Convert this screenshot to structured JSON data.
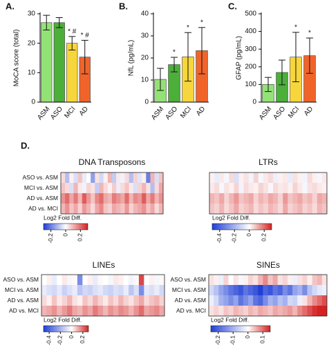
{
  "chart_data": [
    {
      "type": "bar",
      "panel_label": "A.",
      "ylabel": "MoCA score (total)",
      "categories": [
        "ASM",
        "ASO",
        "MCI",
        "AD"
      ],
      "values": [
        27,
        27,
        20,
        15.3
      ],
      "errors": [
        2.5,
        1.7,
        2.3,
        5.7
      ],
      "annotations": [
        null,
        null,
        "* #",
        "* #"
      ],
      "colors": [
        "#93e276",
        "#4caf3a",
        "#f7d63c",
        "#f0642a"
      ],
      "ylim": [
        0,
        30
      ],
      "yticks": [
        0,
        10,
        20,
        30
      ]
    },
    {
      "type": "bar",
      "panel_label": "B.",
      "ylabel": "NfL (pg/mL)",
      "categories": [
        "ASM",
        "ASO",
        "MCI",
        "AD"
      ],
      "values": [
        10.3,
        17,
        20.5,
        23.3
      ],
      "errors": [
        5,
        3.3,
        11,
        10.5
      ],
      "annotations": [
        null,
        "*",
        "*",
        "*"
      ],
      "colors": [
        "#93e276",
        "#4caf3a",
        "#f7d63c",
        "#f0642a"
      ],
      "ylim": [
        0,
        40
      ],
      "yticks": [
        0,
        10,
        20,
        30,
        40
      ]
    },
    {
      "type": "bar",
      "panel_label": "C.",
      "ylabel": "GFAP (pg/mL)",
      "categories": [
        "ASM",
        "ASO",
        "MCI",
        "AD"
      ],
      "values": [
        100,
        168,
        255,
        263
      ],
      "errors": [
        40,
        70,
        140,
        100
      ],
      "annotations": [
        null,
        null,
        "*",
        "*"
      ],
      "colors": [
        "#93e276",
        "#4caf3a",
        "#f7d63c",
        "#f0642a"
      ],
      "ylim": [
        0,
        500
      ],
      "yticks": [
        0,
        100,
        200,
        300,
        400,
        500
      ]
    },
    {
      "type": "heatmap",
      "panel_label": "D.",
      "title": "DNA Transposons",
      "colorbar_label": "Log2 Fold Diff.",
      "zlim": [
        -0.3,
        0.3
      ],
      "zticks": [
        -0.2,
        0,
        0.2
      ],
      "series": [
        {
          "name": "ASO vs. ASM",
          "values": [
            0.05,
            -0.1,
            0.02,
            -0.05,
            0.08,
            -0.03,
            0,
            -0.15,
            0.04,
            -0.06,
            0.02,
            0.1,
            -0.08,
            0.03,
            -0.02,
            0.05,
            -0.1,
            0.06,
            -0.04,
            0.02,
            -0.2,
            0.1,
            -0.05,
            0.08
          ]
        },
        {
          "name": "MCI vs. ASM",
          "values": [
            0.08,
            0.05,
            -0.05,
            0.1,
            0.03,
            -0.02,
            0.06,
            0.04,
            -0.08,
            0.1,
            0.05,
            0.02,
            0.07,
            -0.03,
            0.05,
            0.08,
            0.03,
            -0.05,
            0.06,
            0.1,
            0.04,
            -0.1,
            0.05,
            0.12
          ]
        },
        {
          "name": "AD vs. ASM",
          "values": [
            0.15,
            0.2,
            0.12,
            0.18,
            0.1,
            0.22,
            0.14,
            0.08,
            0.16,
            0.2,
            0.12,
            0.1,
            0.18,
            0.15,
            0.12,
            0.2,
            0.1,
            0.16,
            0.14,
            0.22,
            0.12,
            0.18,
            0.1,
            0.15
          ]
        },
        {
          "name": "AD vs. MCI",
          "values": [
            0.1,
            0.15,
            0.08,
            0.12,
            0.06,
            0.14,
            0.1,
            0.05,
            0.12,
            0.16,
            0.08,
            0.06,
            0.12,
            0.1,
            0.08,
            0.14,
            0.06,
            0.1,
            0.12,
            0.15,
            0.08,
            0.12,
            0.05,
            0.1
          ]
        }
      ]
    },
    {
      "type": "heatmap",
      "title": "LTRs",
      "colorbar_label": "Log2 Fold Diff.",
      "zlim": [
        -0.5,
        0.3
      ],
      "zticks": [
        -0.4,
        -0.2,
        0,
        0.2
      ],
      "series": [
        {
          "values": [
            0.02,
            -0.05,
            0.03,
            -0.02,
            0.05,
            -0.08,
            0.02,
            0.04,
            -0.03,
            0.06,
            -0.02,
            0.03,
            0.05,
            -0.04,
            0.02,
            0.03,
            -0.05,
            0.04,
            0.02,
            -0.03,
            0.05,
            0.02,
            -0.02,
            0.03
          ]
        },
        {
          "values": [
            0.03,
            0.05,
            -0.02,
            0.04,
            0.02,
            0.06,
            -0.03,
            0.05,
            0.03,
            0.02,
            0.06,
            0.04,
            -0.02,
            0.05,
            0.03,
            0.04,
            0.02,
            0.06,
            0.03,
            -0.02,
            0.04,
            0.05,
            0.03,
            0.02
          ]
        },
        {
          "values": [
            0.1,
            0.08,
            0.12,
            0.06,
            0.1,
            0.14,
            0.08,
            0.1,
            0.12,
            0.06,
            0.1,
            0.08,
            0.12,
            0.1,
            0.06,
            0.14,
            0.08,
            0.1,
            0.12,
            0.08,
            0.1,
            0.06,
            0.12,
            0.1
          ]
        },
        {
          "values": [
            0.08,
            0.06,
            0.1,
            0.05,
            0.08,
            0.12,
            0.06,
            0.08,
            0.1,
            0.05,
            0.08,
            0.06,
            0.1,
            0.08,
            0.05,
            0.12,
            0.06,
            0.08,
            0.1,
            0.06,
            0.08,
            0.05,
            0.1,
            0.08
          ]
        }
      ]
    },
    {
      "type": "heatmap",
      "title": "LINEs",
      "colorbar_label": "Log2 Fold Diff.",
      "zlim": [
        -0.5,
        0.3
      ],
      "zticks": [
        -0.4,
        -0.2,
        0,
        0.2
      ],
      "series": [
        {
          "name": "ASO vs. ASM",
          "values": [
            0,
            0.02,
            -0.05,
            0,
            0.03,
            -0.02,
            0.01,
            -0.3,
            0,
            0.02,
            -0.05,
            0.01,
            0,
            -0.02,
            0.03,
            0.02,
            0,
            -0.03,
            0.01,
            0.25,
            0,
            0.02,
            -0.02,
            0.01
          ]
        },
        {
          "name": "MCI vs. ASM",
          "values": [
            -0.05,
            -0.08,
            -0.1,
            -0.06,
            -0.12,
            -0.08,
            -0.05,
            -0.15,
            -0.1,
            -0.12,
            -0.08,
            -0.06,
            -0.1,
            -0.12,
            -0.08,
            -0.1,
            -0.05,
            -0.15,
            -0.08,
            -0.3,
            -0.06,
            -0.08,
            -0.05,
            -0.1
          ]
        },
        {
          "name": "AD vs. ASM",
          "values": [
            0.05,
            0.02,
            0.08,
            0.03,
            0.06,
            0.1,
            0.04,
            0.02,
            0.08,
            0.05,
            0.1,
            0.06,
            0.03,
            0.08,
            0.05,
            0.1,
            0.06,
            0.04,
            0.08,
            0.12,
            0.05,
            0.08,
            0.1,
            0.06
          ]
        },
        {
          "name": "AD vs. MCI",
          "values": [
            0.1,
            0.12,
            0.15,
            0.1,
            0.14,
            0.18,
            0.12,
            0.1,
            0.15,
            0.12,
            0.18,
            0.14,
            0.1,
            0.15,
            0.12,
            0.16,
            0.14,
            0.1,
            0.15,
            0.2,
            0.12,
            0.14,
            0.16,
            0.12
          ]
        }
      ]
    },
    {
      "type": "heatmap",
      "title": "SINEs",
      "colorbar_label": "Log2 Fold Diff.",
      "zlim": [
        -0.25,
        0.15
      ],
      "zticks": [
        -0.2,
        -0.1,
        0,
        0.1
      ],
      "series": [
        {
          "name": "ASO vs. ASM",
          "values": [
            0.02,
            0.01,
            -0.02,
            0.03,
            0,
            0.02,
            -0.01,
            0.01,
            0.03,
            0.02,
            0.05,
            0.08,
            0.04,
            0.06,
            0.02,
            0.03,
            0.01,
            -0.02,
            0.02,
            0.03,
            0.01,
            0.04,
            0.05,
            0.02
          ]
        },
        {
          "name": "MCI vs. ASM",
          "values": [
            -0.05,
            -0.08,
            -0.12,
            -0.15,
            -0.18,
            -0.2,
            -0.22,
            -0.18,
            -0.2,
            -0.22,
            -0.25,
            -0.2,
            -0.22,
            -0.18,
            -0.2,
            -0.15,
            -0.18,
            -0.12,
            -0.1,
            -0.15,
            -0.08,
            -0.05,
            -0.03,
            -0.02
          ]
        },
        {
          "name": "AD vs. ASM",
          "values": [
            -0.02,
            -0.05,
            -0.1,
            -0.12,
            -0.15,
            -0.12,
            -0.18,
            -0.15,
            -0.12,
            -0.18,
            -0.2,
            -0.15,
            -0.1,
            -0.12,
            -0.08,
            -0.1,
            -0.05,
            -0.06,
            -0.02,
            0.02,
            0.05,
            0.08,
            0.1,
            0.12
          ]
        },
        {
          "name": "AD vs. MCI",
          "values": [
            0.02,
            0.03,
            0.02,
            0.04,
            0.03,
            0.05,
            0.04,
            0.03,
            0.05,
            0.04,
            0.06,
            0.05,
            0.04,
            0.06,
            0.05,
            0.06,
            0.07,
            0.05,
            0.08,
            0.1,
            0.12,
            0.14,
            0.15,
            0.16
          ]
        }
      ]
    }
  ]
}
